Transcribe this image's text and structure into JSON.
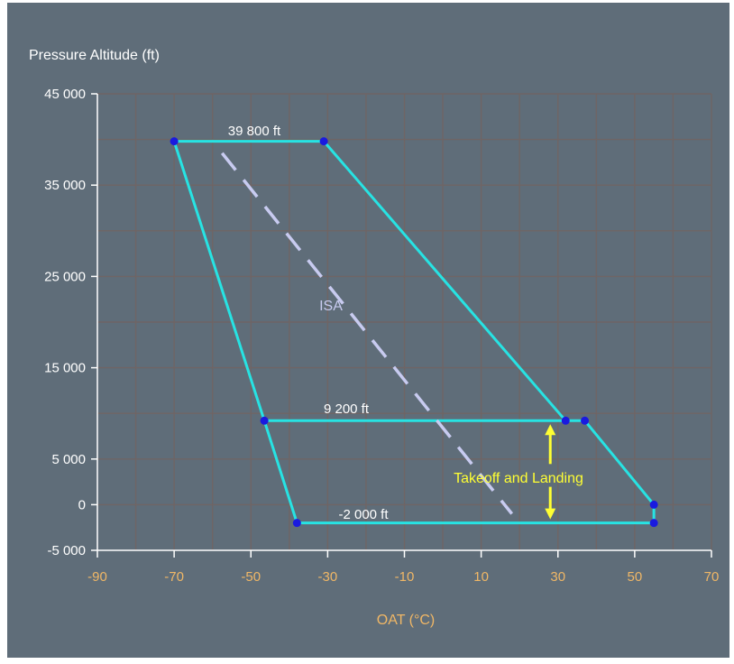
{
  "chart_data": {
    "type": "line",
    "title": "",
    "ylabel": "Pressure Altitude (ft)",
    "xlabel": "OAT (°C)",
    "xlim": [
      -90,
      70
    ],
    "ylim": [
      -5000,
      45000
    ],
    "x_ticks": [
      -90,
      -70,
      -50,
      -30,
      -10,
      10,
      30,
      50,
      70
    ],
    "x_tick_labels": [
      "-90",
      "-70",
      "-50",
      "-30",
      "-10",
      "10",
      "30",
      "50",
      "70"
    ],
    "y_ticks": [
      45000,
      35000,
      25000,
      15000,
      5000,
      0,
      -5000
    ],
    "y_tick_labels": [
      "45 000",
      "35 000",
      "25 000",
      "15 000",
      "5 000",
      "0",
      "-5 000"
    ],
    "grid": true,
    "series": [
      {
        "role": "envelope",
        "color": "#27e3e3",
        "points": [
          [
            -70,
            39800
          ],
          [
            -31,
            39800
          ],
          [
            32,
            9200
          ],
          [
            37,
            9200
          ],
          [
            55,
            0
          ],
          [
            55,
            -2000
          ],
          [
            -38,
            -2000
          ],
          [
            -46.5,
            9200
          ],
          [
            -70,
            39800
          ]
        ]
      },
      {
        "role": "takeoff-landing-line",
        "color": "#27e3e3",
        "points": [
          [
            -46.5,
            9200
          ],
          [
            32,
            9200
          ]
        ]
      },
      {
        "name": "ISA",
        "role": "isa-dashed",
        "color": "#c8cbf0",
        "points": [
          [
            -57.5,
            38500
          ],
          [
            18,
            -1000
          ]
        ]
      }
    ],
    "markers": [
      [
        -70,
        39800
      ],
      [
        -31,
        39800
      ],
      [
        -46.5,
        9200
      ],
      [
        32,
        9200
      ],
      [
        37,
        9200
      ],
      [
        55,
        0
      ],
      [
        55,
        -2000
      ],
      [
        -38,
        -2000
      ]
    ],
    "marker_color": "#1a1adf",
    "annotations": {
      "top_level": "39 800 ft",
      "mid_level": "9 200 ft",
      "low_level": "-2 000 ft",
      "isa": "ISA",
      "takeoff_landing": "Takeoff and Landing"
    },
    "colors": {
      "background": "#5f6d79",
      "grid": "#6f6565",
      "envelope": "#27e3e3",
      "isa": "#c8cbf0",
      "arrow": "#ffff33",
      "x_ticks": "#f0b766",
      "y_ticks": "#ffffff"
    }
  }
}
